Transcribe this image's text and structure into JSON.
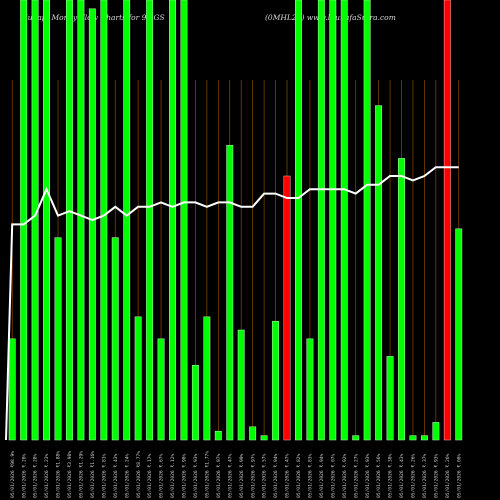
{
  "header": {
    "left": "Munafa Money Flow Charts for 90.GS",
    "right": "(0MHL24) www.MunafaSutra.com"
  },
  "colors": {
    "background": "#000000",
    "bar_up": "#00ff00",
    "bar_down": "#ff0000",
    "line": "#ffffff",
    "grid": "#8b4a00"
  },
  "chart_data": {
    "type": "bar",
    "grid": "vertical",
    "ylim": [
      0,
      100
    ],
    "line_ylim": [
      0,
      100
    ],
    "categories": [
      "05/01/2026 ₹98.9%",
      "05/01/2026 ₹.28%",
      "05/01/2026 ₹.28%",
      "05/01/2026 ₹.23%",
      "05/01/2026 ₹1.88%",
      "05/01/2026 ₹3.98%",
      "05/01/2026 ₹1.29%",
      "05/01/2026 ₹1.16%",
      "05/01/2026 ₹.81%",
      "05/01/2026 ₹.43%",
      "05/01/2026 ₹.24%",
      "05/01/2026 ₹8.77%",
      "05/01/2026 ₹.17%",
      "05/01/2026 ₹.67%",
      "05/01/2026 ₹.12%",
      "05/01/2026 ₹.98%",
      "05/01/2026 ₹.93%",
      "05/01/2026 ₹1.77%",
      "05/01/2026 ₹.97%",
      "05/01/2026 ₹.47%",
      "05/01/2026 ₹.99%",
      "05/01/2026 ₹.97%",
      "05/01/2026 ₹.57%",
      "05/01/2026 ₹.94%",
      "05/01/2026 ₹.47%",
      "05/01/2026 ₹.82%",
      "05/01/2026 ₹.83%",
      "05/01/2026 ₹.94%",
      "05/01/2026 ₹.07%",
      "05/01/2026 ₹.92%",
      "05/01/2026 ₹.27%",
      "05/01/2026 ₹.93%",
      "05/01/2026 ₹.56%",
      "05/01/2026 ₹.38%",
      "05/01/2026 ₹.43%",
      "05/01/2026 ₹.26%",
      "05/01/2026 ₹.37%",
      "05/01/2026 ₹.93%",
      "05/01/2026 ₹.26%",
      "05/01/2026 ₹.08%"
    ],
    "series": [
      {
        "values": [
          23,
          100,
          100,
          100,
          46,
          100,
          100,
          98,
          100,
          46,
          100,
          28,
          100,
          23,
          100,
          100,
          17,
          28,
          2,
          67,
          25,
          3,
          1,
          27,
          60,
          100,
          23,
          100,
          100,
          100,
          1,
          100,
          76,
          19,
          64,
          1,
          1,
          4,
          100,
          48
        ],
        "directions": [
          "up",
          "up",
          "up",
          "up",
          "up",
          "up",
          "up",
          "up",
          "up",
          "up",
          "up",
          "up",
          "up",
          "up",
          "up",
          "up",
          "up",
          "up",
          "up",
          "up",
          "up",
          "up",
          "up",
          "up",
          "down",
          "up",
          "up",
          "up",
          "up",
          "up",
          "up",
          "up",
          "up",
          "up",
          "up",
          "up",
          "up",
          "up",
          "down",
          "up"
        ]
      },
      {
        "values": [
          49,
          49,
          51,
          57,
          51,
          52,
          51,
          50,
          51,
          53,
          51,
          53,
          53,
          54,
          53,
          54,
          54,
          53,
          54,
          54,
          53,
          53,
          56,
          56,
          55,
          55,
          57,
          57,
          57,
          57,
          56,
          58,
          58,
          60,
          60,
          59,
          60,
          62,
          62,
          62
        ]
      }
    ]
  }
}
